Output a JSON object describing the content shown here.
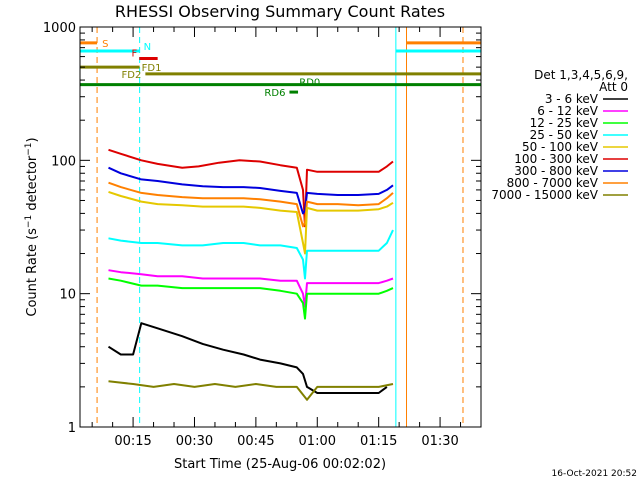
{
  "chart_data": {
    "type": "line",
    "title": "RHESSI Observing Summary Count Rates",
    "xlabel": "Start Time (25-Aug-06 00:02:02)",
    "ylabel_prefix": "Count Rate (s",
    "ylabel_sup": "−1",
    "ylabel_mid": " detector",
    "ylabel_suffix": ")",
    "x_unit": "minutes after 00:00 UT",
    "xlim": [
      2.03,
      100.0
    ],
    "ylim": [
      1,
      1000
    ],
    "yscale": "log",
    "x_ticks": [
      {
        "value": 15,
        "label": "00:15"
      },
      {
        "value": 30,
        "label": "00:30"
      },
      {
        "value": 45,
        "label": "00:45"
      },
      {
        "value": 60,
        "label": "01:00"
      },
      {
        "value": 75,
        "label": "01:15"
      },
      {
        "value": 90,
        "label": "01:30"
      }
    ],
    "y_ticks": [
      {
        "value": 1,
        "label": "1"
      },
      {
        "value": 10,
        "label": "10"
      },
      {
        "value": 100,
        "label": "100"
      },
      {
        "value": 1000,
        "label": "1000"
      }
    ],
    "legend": {
      "placement": "right",
      "header": [
        "Det 1,3,4,5,6,9,",
        "Att 0"
      ],
      "entries": [
        {
          "label": "3 - 6 keV",
          "color": "#000000"
        },
        {
          "label": "6 - 12 keV",
          "color": "#ff00ff"
        },
        {
          "label": "12 - 25 keV",
          "color": "#00ff00"
        },
        {
          "label": "25 - 50 keV",
          "color": "#00ffff"
        },
        {
          "label": "50 - 100 keV",
          "color": "#e5c800"
        },
        {
          "label": "100 - 300 keV",
          "color": "#dd0000"
        },
        {
          "label": "300 - 800 keV",
          "color": "#0000dd"
        },
        {
          "label": "800 - 7000 keV",
          "color": "#ff8000"
        },
        {
          "label": "7000 - 15000 keV",
          "color": "#808000"
        }
      ]
    },
    "series": [
      {
        "name": "100 - 300 keV",
        "color": "#dd0000",
        "x": [
          9,
          12,
          17,
          21,
          27,
          31,
          36,
          41,
          46,
          51,
          55,
          56.5,
          57,
          57.5,
          60,
          65,
          70,
          75,
          77,
          78.5
        ],
        "y": [
          120,
          112,
          100,
          94,
          88,
          90,
          96,
          100,
          98,
          92,
          88,
          60,
          32,
          85,
          82,
          82,
          82,
          82,
          90,
          98
        ]
      },
      {
        "name": "300 - 800 keV",
        "color": "#0000dd",
        "x": [
          9,
          12,
          17,
          21,
          27,
          32,
          37,
          42,
          46,
          51,
          55,
          56.5,
          57,
          57.5,
          60,
          65,
          70,
          75,
          77,
          78.5
        ],
        "y": [
          88,
          80,
          72,
          70,
          66,
          64,
          63,
          63,
          62,
          59,
          57,
          40,
          42,
          57,
          56,
          55,
          55,
          56,
          60,
          65
        ]
      },
      {
        "name": "800 - 7000 keV",
        "color": "#ff8000",
        "x": [
          9,
          12,
          17,
          21,
          27,
          32,
          37,
          42,
          46,
          51,
          55,
          56.5,
          57,
          57.5,
          60,
          65,
          70,
          75,
          77,
          78.5
        ],
        "y": [
          68,
          63,
          57,
          55,
          53,
          52,
          52,
          52,
          51,
          49,
          47,
          32,
          34,
          49,
          47,
          47,
          46,
          47,
          52,
          57
        ]
      },
      {
        "name": "50 - 100 keV",
        "color": "#e5c800",
        "x": [
          9,
          12,
          17,
          21,
          27,
          32,
          37,
          42,
          46,
          51,
          55,
          56.5,
          57,
          57.5,
          60,
          65,
          70,
          75,
          77,
          78.5
        ],
        "y": [
          58,
          54,
          49,
          47,
          46,
          45,
          45,
          45,
          44,
          42,
          41,
          24,
          20,
          44,
          42,
          42,
          42,
          43,
          45,
          48
        ]
      },
      {
        "name": "25 - 50 keV",
        "color": "#00ffff",
        "x": [
          9,
          12,
          17,
          21,
          27,
          32,
          37,
          42,
          46,
          51,
          55,
          56.5,
          57,
          57.5,
          60,
          65,
          70,
          75,
          77,
          78.5
        ],
        "y": [
          26,
          25,
          24,
          24,
          23,
          23,
          24,
          24,
          23,
          23,
          22,
          18,
          13,
          21,
          21,
          21,
          21,
          21,
          24,
          30
        ]
      },
      {
        "name": "6 - 12 keV",
        "color": "#ff00ff",
        "x": [
          9,
          12,
          17,
          21,
          27,
          32,
          37,
          42,
          46,
          51,
          55,
          56.5,
          57,
          57.5,
          60,
          65,
          70,
          75,
          77,
          78.5
        ],
        "y": [
          15,
          14.5,
          14,
          13.5,
          13.5,
          13,
          13,
          13,
          13,
          12.5,
          12.5,
          10,
          8,
          12,
          12,
          12,
          12,
          12,
          12.5,
          13
        ]
      },
      {
        "name": "12 - 25 keV",
        "color": "#00ff00",
        "x": [
          9,
          12,
          17,
          21,
          27,
          32,
          37,
          42,
          46,
          51,
          55,
          56.5,
          57,
          57.5,
          60,
          65,
          70,
          75,
          77,
          78.5
        ],
        "y": [
          13,
          12.5,
          11.5,
          11.5,
          11,
          11,
          11,
          11,
          11,
          10.5,
          10,
          8.5,
          6.5,
          10,
          10,
          10,
          10,
          10,
          10.5,
          11
        ]
      },
      {
        "name": "3 - 6 keV",
        "color": "#000000",
        "x": [
          9,
          12,
          15,
          17,
          21,
          27,
          32,
          37,
          42,
          46,
          51,
          55,
          56.5,
          57.5,
          60,
          65,
          70,
          75,
          77
        ],
        "y": [
          4,
          3.5,
          3.5,
          6,
          5.5,
          4.8,
          4.2,
          3.8,
          3.5,
          3.2,
          3,
          2.8,
          2.5,
          2,
          1.8,
          1.8,
          1.8,
          1.8,
          2
        ]
      },
      {
        "name": "7000 - 15000 keV",
        "color": "#808000",
        "x": [
          9,
          15,
          20,
          25,
          30,
          35,
          40,
          45,
          50,
          55,
          57.5,
          60,
          65,
          70,
          75,
          78.5
        ],
        "y": [
          2.2,
          2.1,
          2.0,
          2.1,
          2.0,
          2.1,
          2.0,
          2.1,
          2.0,
          2.0,
          1.6,
          2.0,
          2.0,
          2.0,
          2.0,
          2.1
        ]
      }
    ],
    "vertical_lines": [
      {
        "x": 6.2,
        "color": "#ff8000",
        "style": "dashed"
      },
      {
        "x": 16.6,
        "color": "#00ffff",
        "style": "dashed"
      },
      {
        "x": 79.2,
        "color": "#00ffff",
        "style": "solid"
      },
      {
        "x": 81.8,
        "color": "#ff8000",
        "style": "solid"
      },
      {
        "x": 95.6,
        "color": "#ff8000",
        "style": "dashed"
      }
    ],
    "flag_bars": [
      {
        "label": "S",
        "color": "#ff8000",
        "segments": [
          [
            2.03,
            6.2
          ],
          [
            81.8,
            100
          ]
        ],
        "y": 760
      },
      {
        "label": "N",
        "color": "#00ffff",
        "segments": [
          [
            2.03,
            16.6
          ],
          [
            79.2,
            100
          ]
        ],
        "y": 660
      },
      {
        "label": "F",
        "color": "#dd0000",
        "segments": [
          [
            16.5,
            21
          ]
        ],
        "y": 580
      },
      {
        "label": "FD1",
        "color": "#808000",
        "segments": [
          [
            2.03,
            16.6
          ]
        ],
        "y": 500
      },
      {
        "label": "FD2",
        "color": "#808000",
        "segments": [
          [
            18,
            100
          ]
        ],
        "y": 445
      },
      {
        "label": "RD0",
        "color": "#008000",
        "segments": [
          [
            2.03,
            100
          ]
        ],
        "y": 370
      },
      {
        "label": "RD6",
        "color": "#008000",
        "segments": [
          [
            53.2,
            55.3
          ]
        ],
        "y": 325
      }
    ]
  },
  "footer": {
    "date_stamp": "16-Oct-2021 20:52"
  }
}
